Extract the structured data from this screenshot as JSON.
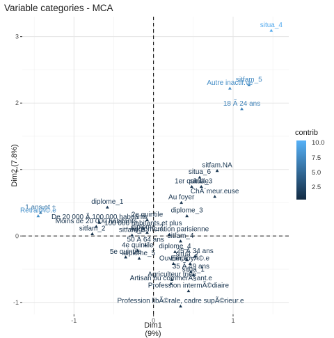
{
  "chart_data": {
    "type": "scatter",
    "title": "Variable categories - MCA",
    "xlabel": "Dim1 (9%)",
    "ylabel": "Dim2 (7.8%)",
    "xlim": [
      -1.65,
      1.7
    ],
    "ylim": [
      -1.18,
      3.3
    ],
    "xticks": [
      -1,
      0,
      1
    ],
    "yticks": [
      -1,
      0,
      1,
      2,
      3
    ],
    "grid": true,
    "reference_lines": {
      "x": 0,
      "y": 0
    },
    "legend": {
      "title": "contrib",
      "position": "right",
      "ticks": [
        2.5,
        5.0,
        7.5,
        10.0
      ],
      "range": [
        0.5,
        10.5
      ]
    },
    "colors": {
      "low": "#132B43",
      "high": "#56B1F7"
    },
    "points": [
      {
        "label": "situa_4",
        "x": 1.48,
        "y": 3.09,
        "contrib": 10.0
      },
      {
        "label": "Autre inactif.ve",
        "x": 0.96,
        "y": 2.22,
        "contrib": 7.8
      },
      {
        "label": "sitfam_5",
        "x": 1.2,
        "y": 2.27,
        "contrib": 7.5
      },
      {
        "label": "18 Ã  24 ans",
        "x": 1.11,
        "y": 1.91,
        "contrib": 7.0
      },
      {
        "label": "sitfam.NA",
        "x": 0.8,
        "y": 0.98,
        "contrib": 1.3
      },
      {
        "label": "situa_6",
        "x": 0.58,
        "y": 0.88,
        "contrib": 1.2
      },
      {
        "label": "1er quintile",
        "x": 0.48,
        "y": 0.74,
        "contrib": 1.2
      },
      {
        "label": "situa_3",
        "x": 0.6,
        "y": 0.74,
        "contrib": 1.2
      },
      {
        "label": "ChÃ´meur.euse",
        "x": 0.77,
        "y": 0.59,
        "contrib": 1.4
      },
      {
        "label": "Au foyer",
        "x": 0.35,
        "y": 0.5,
        "contrib": 1.1
      },
      {
        "label": "1 ans et +",
        "x": -1.42,
        "y": 0.35,
        "contrib": 6.0
      },
      {
        "label": "RetraitÃ©.e",
        "x": -1.45,
        "y": 0.3,
        "contrib": 8.0
      },
      {
        "label": "diplome_1",
        "x": -0.58,
        "y": 0.43,
        "contrib": 1.5
      },
      {
        "label": "diplome_3",
        "x": 0.42,
        "y": 0.3,
        "contrib": 1.0
      },
      {
        "label": "2e quintile",
        "x": -0.08,
        "y": 0.24,
        "contrib": 1.0
      },
      {
        "label": "De 20 000 Ã  100 000 habitants",
        "x": -0.68,
        "y": 0.2,
        "contrib": 1.0
      },
      {
        "label": "Moins de 20 000 habitants",
        "x": -0.72,
        "y": 0.14,
        "contrib": 1.0
      },
      {
        "label": "100 000 habitants et plus",
        "x": -0.13,
        "y": 0.11,
        "contrib": 1.0
      },
      {
        "label": "sitfam_2",
        "x": -0.77,
        "y": 0.03,
        "contrib": 1.0
      },
      {
        "label": "Agglomeration parisienne",
        "x": 0.2,
        "y": 0.02,
        "contrib": 0.9
      },
      {
        "label": "diplome_2",
        "x": -0.08,
        "y": 0.05,
        "contrib": 0.9
      },
      {
        "label": "sitfam_3",
        "x": -0.27,
        "y": 0.01,
        "contrib": 0.9
      },
      {
        "label": "sitfam_4",
        "x": 0.34,
        "y": -0.08,
        "contrib": 0.9
      },
      {
        "label": "50 Ã  64 ans",
        "x": -0.1,
        "y": -0.14,
        "contrib": 1.0
      },
      {
        "label": "4e quintile",
        "x": -0.2,
        "y": -0.22,
        "contrib": 0.9
      },
      {
        "label": "diplome_4",
        "x": 0.27,
        "y": -0.24,
        "contrib": 0.9
      },
      {
        "label": "5e quintile",
        "x": -0.35,
        "y": -0.32,
        "contrib": 1.0
      },
      {
        "label": "diplome_5",
        "x": -0.18,
        "y": -0.34,
        "contrib": 0.9
      },
      {
        "label": "25 Ã  34 ans",
        "x": 0.52,
        "y": -0.31,
        "contrib": 1.0
      },
      {
        "label": "situa_2",
        "x": 0.42,
        "y": -0.36,
        "contrib": 0.9
      },
      {
        "label": "Ouvrier.e",
        "x": 0.25,
        "y": -0.42,
        "contrib": 1.0
      },
      {
        "label": "EmployÃ©.e",
        "x": 0.46,
        "y": -0.42,
        "contrib": 0.9
      },
      {
        "label": "35 Ã  49 ans",
        "x": 0.47,
        "y": -0.54,
        "contrib": 1.0
      },
      {
        "label": "situa_1",
        "x": 0.5,
        "y": -0.59,
        "contrib": 1.0
      },
      {
        "label": "Agriculteur trice",
        "x": 0.23,
        "y": -0.66,
        "contrib": 1.0
      },
      {
        "label": "Artisan ou commerÃ§ant.e",
        "x": 0.22,
        "y": -0.72,
        "contrib": 1.0
      },
      {
        "label": "Profession intermÃ©diaire",
        "x": 0.44,
        "y": -0.83,
        "contrib": 1.0
      },
      {
        "label": "Profession libÃ©rale, cadre supÃ©rieur.e",
        "x": 0.34,
        "y": -1.06,
        "contrib": 1.3
      }
    ]
  }
}
